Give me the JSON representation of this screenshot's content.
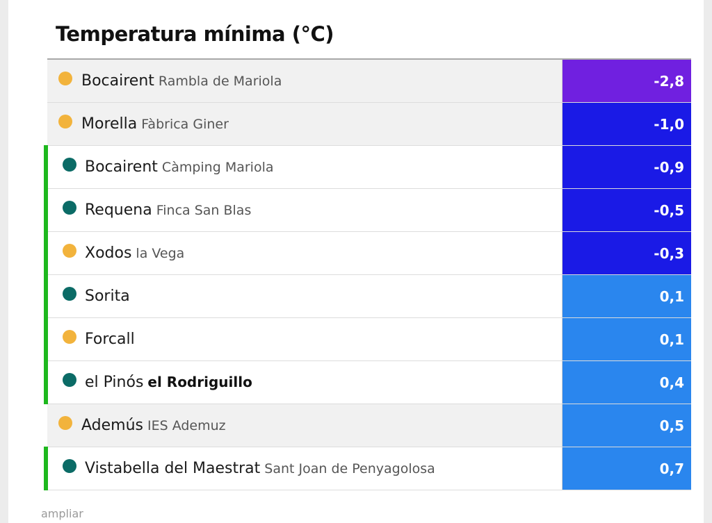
{
  "title": "Temperatura mínima (°C)",
  "footer_link": "ampliar",
  "colors": {
    "dot_orange": "#f2b33c",
    "dot_teal": "#0b6b66",
    "marker_green": "#1eb81e",
    "value_purple": "#7020e0",
    "value_darkblue": "#1a1ae6",
    "value_blue": "#2a86ee"
  },
  "rows": [
    {
      "city": "Bocairent",
      "station": "Rambla de Mariola",
      "value": "-2,8",
      "dot": "orange",
      "marker": false,
      "bg": "gray",
      "value_color": "#7020e0",
      "station_bold": false
    },
    {
      "city": "Morella",
      "station": "Fàbrica Giner",
      "value": "-1,0",
      "dot": "orange",
      "marker": false,
      "bg": "gray",
      "value_color": "#1a1ae6",
      "station_bold": false
    },
    {
      "city": "Bocairent",
      "station": "Càmping Mariola",
      "value": "-0,9",
      "dot": "teal",
      "marker": true,
      "bg": "white",
      "value_color": "#1a1ae6",
      "station_bold": false
    },
    {
      "city": "Requena",
      "station": "Finca San Blas",
      "value": "-0,5",
      "dot": "teal",
      "marker": true,
      "bg": "white",
      "value_color": "#1a1ae6",
      "station_bold": false
    },
    {
      "city": "Xodos",
      "station": "la Vega",
      "value": "-0,3",
      "dot": "orange",
      "marker": true,
      "bg": "white",
      "value_color": "#1a1ae6",
      "station_bold": false
    },
    {
      "city": "Sorita",
      "station": "",
      "value": "0,1",
      "dot": "teal",
      "marker": true,
      "bg": "white",
      "value_color": "#2a86ee",
      "station_bold": false
    },
    {
      "city": "Forcall",
      "station": "",
      "value": "0,1",
      "dot": "orange",
      "marker": true,
      "bg": "white",
      "value_color": "#2a86ee",
      "station_bold": false
    },
    {
      "city": "el Pinós",
      "station": "el Rodriguillo",
      "value": "0,4",
      "dot": "teal",
      "marker": true,
      "bg": "white",
      "value_color": "#2a86ee",
      "station_bold": true
    },
    {
      "city": "Ademús",
      "station": "IES Ademuz",
      "value": "0,5",
      "dot": "orange",
      "marker": false,
      "bg": "gray",
      "value_color": "#2a86ee",
      "station_bold": false
    },
    {
      "city": "Vistabella del Maestrat",
      "station": "Sant Joan de Penyagolosa",
      "value": "0,7",
      "dot": "teal",
      "marker": true,
      "bg": "white",
      "value_color": "#2a86ee",
      "station_bold": false
    }
  ]
}
